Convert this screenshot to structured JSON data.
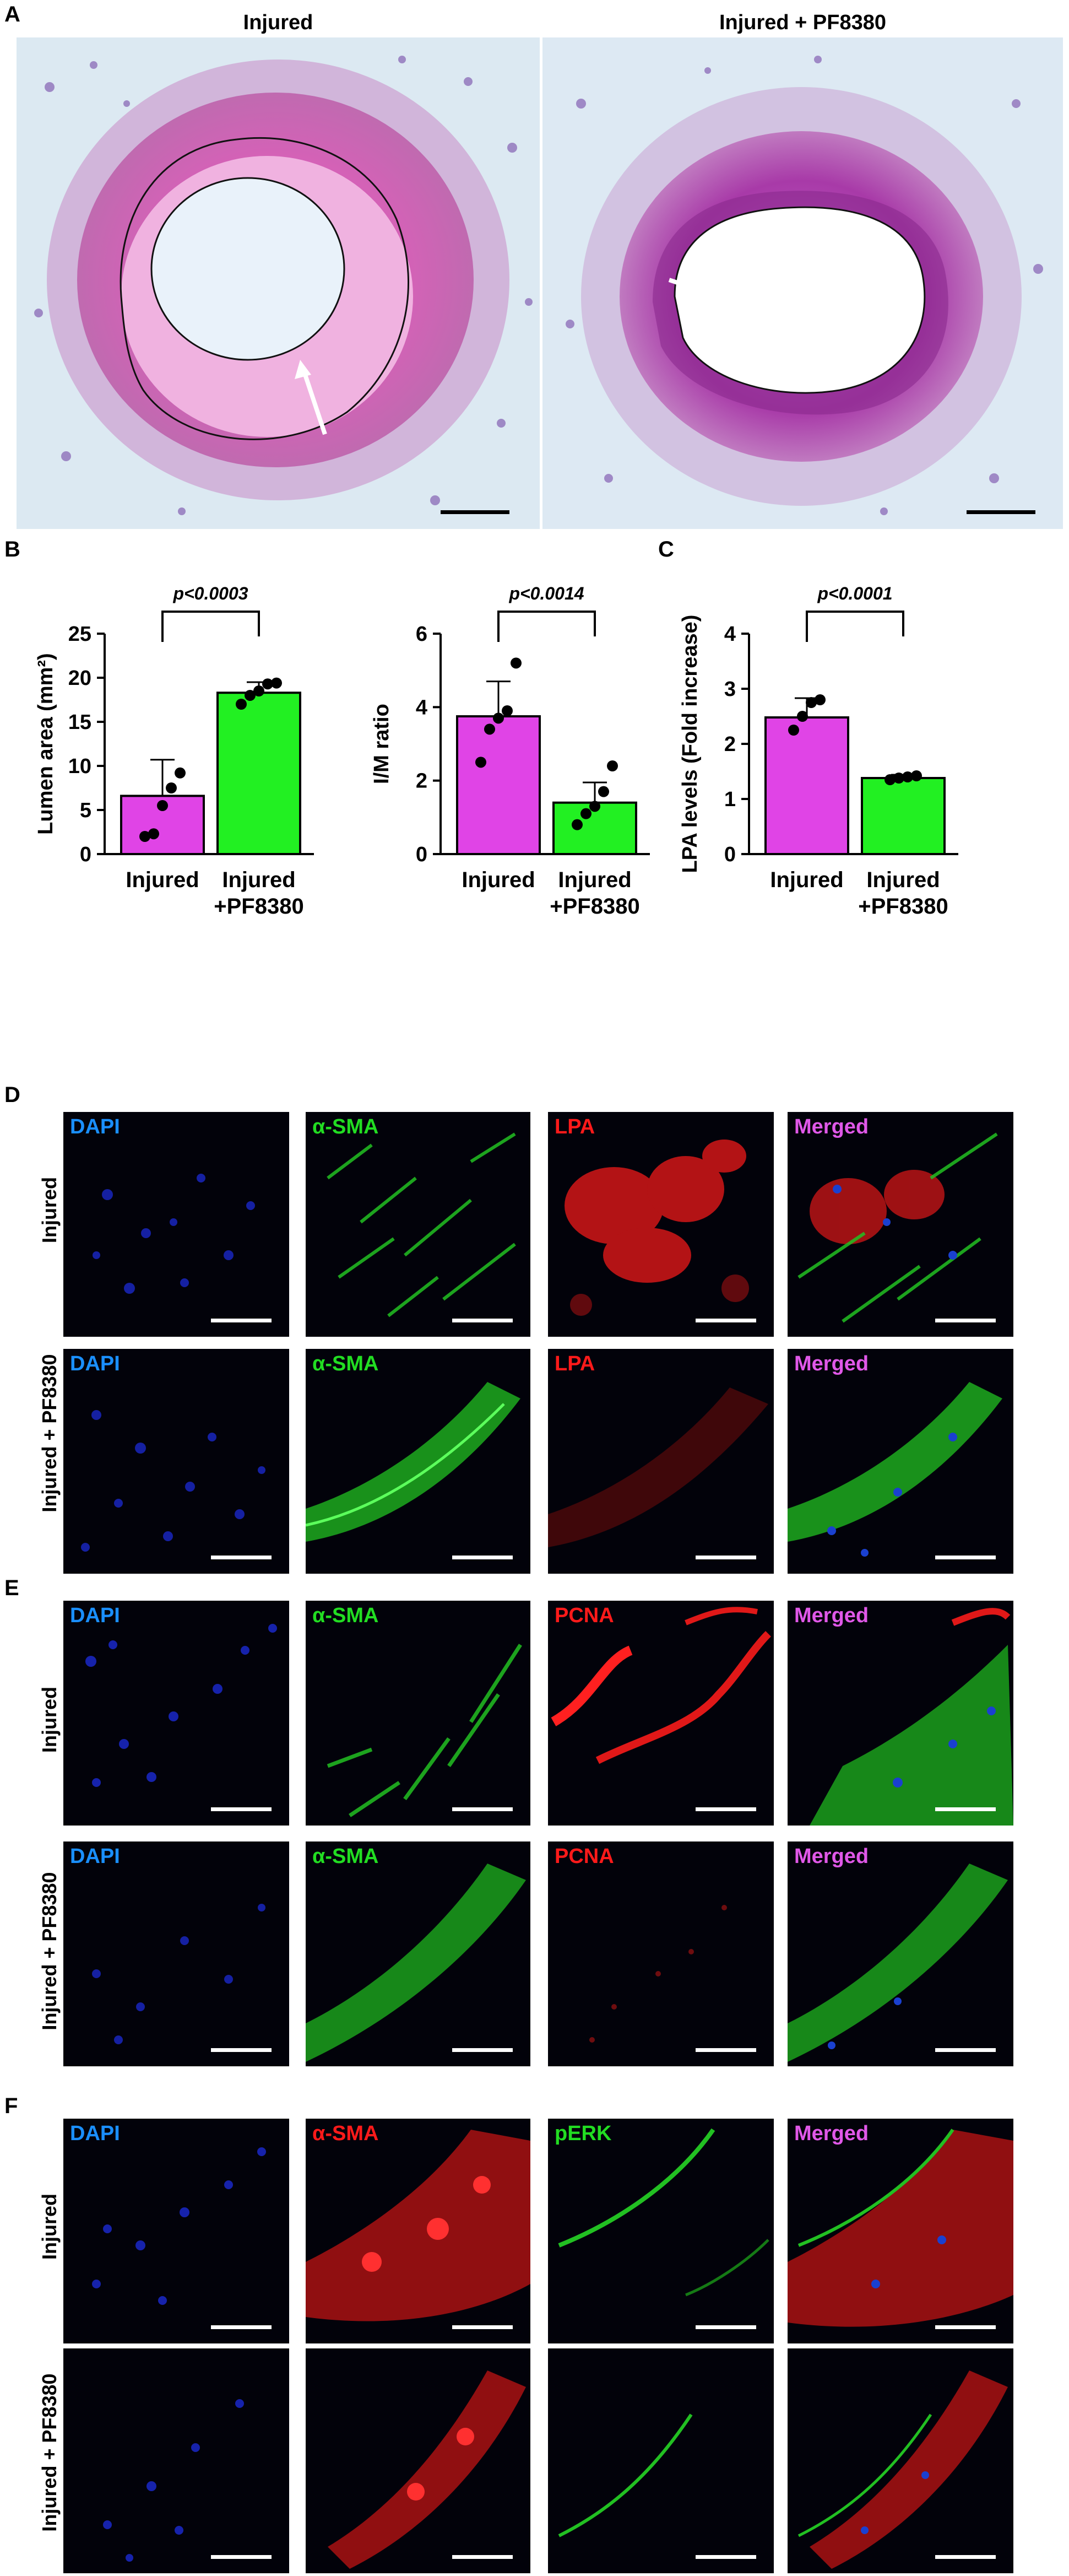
{
  "panel_labels": {
    "A": "A",
    "B": "B",
    "C": "C",
    "D": "D",
    "E": "E",
    "F": "F"
  },
  "panel_a": {
    "left_title": "Injured",
    "right_title": "Injured + PF8380"
  },
  "chart_data": [
    {
      "type": "bar",
      "categories": [
        "Injured",
        "Injured\n+PF8380"
      ],
      "values": [
        6.6,
        18.3
      ],
      "errors": [
        4.1,
        1.2
      ],
      "points": [
        [
          2.0,
          2.3,
          5.5,
          7.5,
          9.2
        ],
        [
          17.0,
          18.0,
          18.5,
          19.3,
          19.4
        ]
      ],
      "ylabel": "Lumen area (mm²)",
      "ylim": [
        0,
        25
      ],
      "yticks": [
        0,
        5,
        10,
        15,
        20,
        25
      ],
      "pvalue": "p<0.0003",
      "colors": [
        "#e044e6",
        "#22f022"
      ]
    },
    {
      "type": "bar",
      "categories": [
        "Injured",
        "Injured\n+PF8380"
      ],
      "values": [
        3.75,
        1.4
      ],
      "errors": [
        0.95,
        0.55
      ],
      "points": [
        [
          2.5,
          3.4,
          3.7,
          3.9,
          5.2
        ],
        [
          0.8,
          1.1,
          1.3,
          1.7,
          2.4
        ]
      ],
      "ylabel": "I/M ratio",
      "ylim": [
        0,
        6
      ],
      "yticks": [
        0,
        2,
        4,
        6
      ],
      "pvalue": "p<0.0014",
      "colors": [
        "#e044e6",
        "#22f022"
      ]
    },
    {
      "type": "bar",
      "categories": [
        "Injured",
        "Injured\n+PF8380"
      ],
      "values": [
        2.48,
        1.38
      ],
      "errors": [
        0.35,
        0.06
      ],
      "points": [
        [
          2.25,
          2.5,
          2.75,
          2.8
        ],
        [
          1.35,
          1.38,
          1.4,
          1.42
        ]
      ],
      "ylabel": "LPA levels (Fold increase)",
      "ylim": [
        0,
        4
      ],
      "yticks": [
        0,
        1,
        2,
        3,
        4
      ],
      "pvalue": "p<0.0001",
      "colors": [
        "#e044e6",
        "#22f022"
      ]
    }
  ],
  "panel_d": {
    "rows": [
      "Injured",
      "Injured + PF8380"
    ],
    "channels": [
      {
        "label": "DAPI",
        "color": "#1a8fff"
      },
      {
        "label": "α-SMA",
        "color": "#22dd22"
      },
      {
        "label": "LPA",
        "color": "#ff1a1a"
      },
      {
        "label": "Merged",
        "color": "#e058e8"
      }
    ]
  },
  "panel_e": {
    "rows": [
      "Injured",
      "Injured + PF8380"
    ],
    "channels": [
      {
        "label": "DAPI",
        "color": "#1a8fff"
      },
      {
        "label": "α-SMA",
        "color": "#22dd22"
      },
      {
        "label": "PCNA",
        "color": "#ff1a1a"
      },
      {
        "label": "Merged",
        "color": "#e058e8"
      }
    ]
  },
  "panel_f": {
    "rows": [
      "Injured",
      "Injured + PF8380"
    ],
    "channels": [
      {
        "label": "DAPI",
        "color": "#1a8fff"
      },
      {
        "label": "α-SMA",
        "color": "#ff1a1a"
      },
      {
        "label": "pERK",
        "color": "#22dd22"
      },
      {
        "label": "Merged",
        "color": "#e058e8"
      }
    ]
  }
}
